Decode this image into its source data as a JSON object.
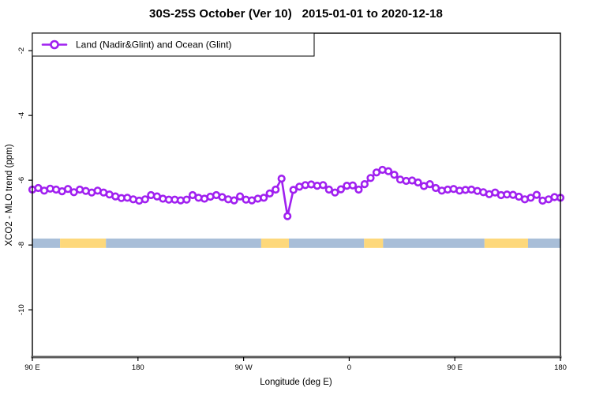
{
  "chart_data": {
    "type": "line",
    "title": "30S-25S October (Ver 10)   2015-01-01 to 2020-12-18",
    "legend": "Land (Nadir&Glint) and Ocean (Glint)",
    "xlabel": "Longitude (deg E)",
    "ylabel": "XCO2 - MLO trend (ppm)",
    "grid": false,
    "legend_position": "top-left-inside",
    "x_axis": {
      "range_unwrapped_deg": [
        90,
        540
      ],
      "ticks": [
        {
          "v": 90,
          "label": "90 E"
        },
        {
          "v": 180,
          "label": "180"
        },
        {
          "v": 270,
          "label": "90 W"
        },
        {
          "v": 360,
          "label": "0"
        },
        {
          "v": 450,
          "label": "90 E"
        },
        {
          "v": 540,
          "label": "180"
        }
      ]
    },
    "y_axis": {
      "range_ppm": [
        -11.46,
        -1.46
      ],
      "ticks": [
        {
          "v": -2,
          "label": "-2"
        },
        {
          "v": -4,
          "label": "-4"
        },
        {
          "v": -6,
          "label": "-6"
        },
        {
          "v": -8,
          "label": "-8"
        },
        {
          "v": -10,
          "label": "-10"
        }
      ]
    },
    "series": [
      {
        "name": "Land (Nadir&Glint) and Ocean (Glint)",
        "marker": "open-circle",
        "color": "#a020f0",
        "lon_start": 90,
        "lon_end": 540,
        "n_points": 90,
        "values_ppm": [
          -6.29,
          -6.24,
          -6.32,
          -6.26,
          -6.29,
          -6.34,
          -6.27,
          -6.37,
          -6.29,
          -6.33,
          -6.38,
          -6.32,
          -6.38,
          -6.44,
          -6.5,
          -6.55,
          -6.54,
          -6.59,
          -6.63,
          -6.59,
          -6.46,
          -6.5,
          -6.57,
          -6.6,
          -6.6,
          -6.62,
          -6.6,
          -6.46,
          -6.54,
          -6.57,
          -6.51,
          -6.46,
          -6.52,
          -6.59,
          -6.62,
          -6.5,
          -6.6,
          -6.62,
          -6.57,
          -6.54,
          -6.41,
          -6.29,
          -5.95,
          -7.11,
          -6.3,
          -6.2,
          -6.15,
          -6.13,
          -6.17,
          -6.15,
          -6.29,
          -6.38,
          -6.28,
          -6.17,
          -6.16,
          -6.29,
          -6.12,
          -5.93,
          -5.76,
          -5.68,
          -5.72,
          -5.83,
          -5.98,
          -6.02,
          -6.01,
          -6.07,
          -6.18,
          -6.12,
          -6.24,
          -6.32,
          -6.29,
          -6.27,
          -6.32,
          -6.3,
          -6.29,
          -6.33,
          -6.37,
          -6.43,
          -6.38,
          -6.46,
          -6.44,
          -6.45,
          -6.51,
          -6.59,
          -6.54,
          -6.45,
          -6.63,
          -6.59,
          -6.52,
          -6.54
        ]
      }
    ],
    "surface_stripe": {
      "y_top_ppm": -7.8,
      "y_bottom_ppm": -8.09,
      "segments": [
        {
          "from_deg": 90.0,
          "to_deg": 113.6,
          "color": "#a8bed8"
        },
        {
          "from_deg": 113.6,
          "to_deg": 152.7,
          "color": "#fdd87b"
        },
        {
          "from_deg": 152.7,
          "to_deg": 285.0,
          "color": "#a8bed8"
        },
        {
          "from_deg": 285.0,
          "to_deg": 308.6,
          "color": "#fdd87b"
        },
        {
          "from_deg": 308.6,
          "to_deg": 372.7,
          "color": "#a8bed8"
        },
        {
          "from_deg": 372.7,
          "to_deg": 388.9,
          "color": "#fdd87b"
        },
        {
          "from_deg": 388.9,
          "to_deg": 475.3,
          "color": "#a8bed8"
        },
        {
          "from_deg": 475.3,
          "to_deg": 512.4,
          "color": "#fdd87b"
        },
        {
          "from_deg": 512.4,
          "to_deg": 540.0,
          "color": "#a8bed8"
        }
      ]
    },
    "colors": {
      "series": "#a020f0",
      "stripe_blue": "#a8bed8",
      "stripe_yellow": "#fdd87b",
      "axis_line": "#595959",
      "box": "#000000",
      "background": "#ffffff"
    }
  }
}
